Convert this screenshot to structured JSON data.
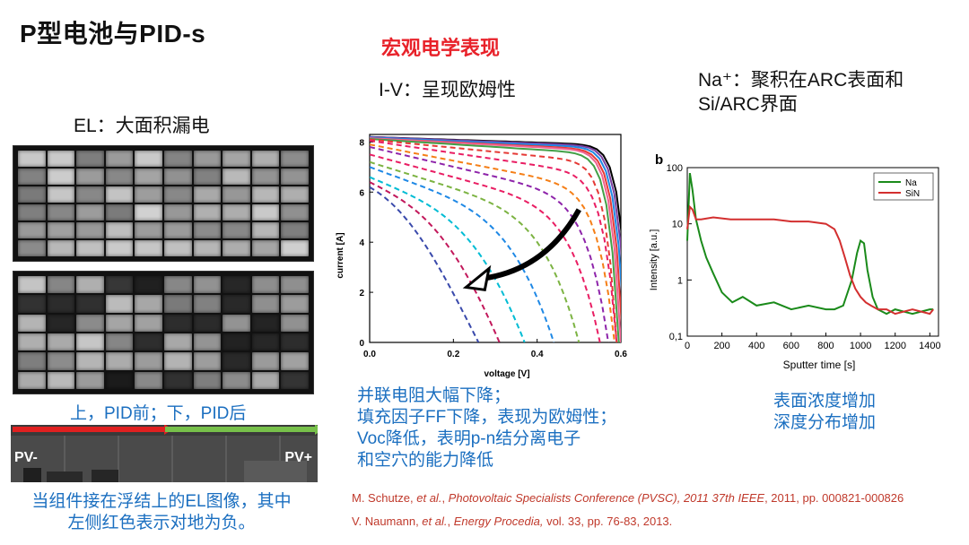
{
  "title": "P型电池与PID-s",
  "section_heading": "宏观电学表现",
  "iv_caption": "I-V：呈现欧姆性",
  "na_caption_line1": "Na⁺：聚积在ARC表面和",
  "na_caption_line2": "Si/ARC界面",
  "el_caption": "EL：大面积漏电",
  "el_compare_caption": "上，PID前；下，PID后",
  "pv_minus_label": "PV-",
  "pv_plus_label": "PV+",
  "float_desc_line1": "当组件接在浮结上的EL图像，其中",
  "float_desc_line2": "左侧红色表示对地为负。",
  "iv_desc_lines": [
    "并联电阻大幅下降；",
    "填充因子FF下降，表现为欧姆性；",
    "Voc降低，表明p-n结分离电子",
    "和空穴的能力降低"
  ],
  "sims_desc_line1": "表面浓度增加",
  "sims_desc_line2": "深度分布增加",
  "ref1": {
    "authors": "M. Schutze, ",
    "etal": "et al.",
    "sep": ", ",
    "venue": "Photovoltaic Specialists Conference (PVSC), 2011 37th IEEE",
    "rest": ", 2011, pp. 000821-000826"
  },
  "ref2": {
    "authors": "V. Naumann, ",
    "etal": "et al.",
    "sep": ", ",
    "venue": "Energy Procedia,",
    "rest": " vol. 33, pp. 76-83, 2013."
  },
  "colors": {
    "title_red": "#e8222a",
    "blue_text": "#1b6fc0",
    "ref_red": "#c0392b",
    "na_green": "#1a8a1a",
    "sin_red": "#d32f2f"
  },
  "chart_data": [
    {
      "type": "line",
      "xlabel": "voltage [V]",
      "ylabel": "current [A]",
      "xlim": [
        0,
        0.6
      ],
      "ylim": [
        0,
        8.3
      ],
      "xticks": [
        "0.0",
        "0.2",
        "0.4",
        "0.6"
      ],
      "yticks": [
        "0",
        "2",
        "4",
        "6",
        "8"
      ],
      "series": [
        {
          "style": "solid",
          "color": "#000000",
          "isc": 8.2,
          "voc": 0.62,
          "ff": 0.93
        },
        {
          "style": "solid",
          "color": "#7a3fa0",
          "isc": 8.2,
          "voc": 0.615,
          "ff": 0.92
        },
        {
          "style": "solid",
          "color": "#1e88e5",
          "isc": 8.18,
          "voc": 0.61,
          "ff": 0.91
        },
        {
          "style": "solid",
          "color": "#e53935",
          "isc": 8.15,
          "voc": 0.605,
          "ff": 0.9
        },
        {
          "style": "solid",
          "color": "#f06292",
          "isc": 8.15,
          "voc": 0.6,
          "ff": 0.89
        },
        {
          "style": "solid",
          "color": "#43a047",
          "isc": 8.12,
          "voc": 0.595,
          "ff": 0.87
        },
        {
          "style": "dashed",
          "color": "#e53935",
          "isc": 8.1,
          "voc": 0.59,
          "ff": 0.8
        },
        {
          "style": "dashed",
          "color": "#e91e63",
          "isc": 8.05,
          "voc": 0.59,
          "ff": 0.7
        },
        {
          "style": "dashed",
          "color": "#f57f17",
          "isc": 7.9,
          "voc": 0.585,
          "ff": 0.6
        },
        {
          "style": "dashed",
          "color": "#8e24aa",
          "isc": 7.8,
          "voc": 0.57,
          "ff": 0.52
        },
        {
          "style": "dashed",
          "color": "#e91e63",
          "isc": 7.5,
          "voc": 0.55,
          "ff": 0.45
        },
        {
          "style": "dashed",
          "color": "#7cb342",
          "isc": 7.2,
          "voc": 0.5,
          "ff": 0.4
        },
        {
          "style": "dashed",
          "color": "#1e88e5",
          "isc": 7.0,
          "voc": 0.44,
          "ff": 0.36
        },
        {
          "style": "dashed",
          "color": "#00bcd4",
          "isc": 6.6,
          "voc": 0.37,
          "ff": 0.33
        },
        {
          "style": "dashed",
          "color": "#c2185b",
          "isc": 6.4,
          "voc": 0.31,
          "ff": 0.31
        },
        {
          "style": "dashed",
          "color": "#3949ab",
          "isc": 6.2,
          "voc": 0.26,
          "ff": 0.29
        }
      ]
    },
    {
      "type": "line",
      "panel_label": "b",
      "xlabel": "Sputter time [s]",
      "ylabel": "Intensity [a.u.]",
      "xlim": [
        0,
        1450
      ],
      "ylog": true,
      "ylim": [
        0.1,
        100
      ],
      "xticks": [
        "0",
        "200",
        "400",
        "600",
        "800",
        "1000",
        "1200",
        "1400"
      ],
      "yticks": [
        "0,1",
        "1",
        "10",
        "100"
      ],
      "legend_position": "top-right",
      "series": [
        {
          "name": "Na",
          "color": "#1a8a1a",
          "x": [
            0,
            15,
            30,
            50,
            80,
            110,
            150,
            200,
            260,
            320,
            400,
            500,
            600,
            700,
            800,
            850,
            900,
            950,
            980,
            1000,
            1020,
            1040,
            1070,
            1100,
            1150,
            1200,
            1300,
            1400,
            1420
          ],
          "y": [
            5,
            80,
            40,
            12,
            5,
            2.5,
            1.3,
            0.6,
            0.4,
            0.5,
            0.35,
            0.4,
            0.3,
            0.35,
            0.3,
            0.3,
            0.35,
            1,
            3,
            5,
            4.5,
            1.5,
            0.5,
            0.3,
            0.25,
            0.3,
            0.25,
            0.3,
            0.3
          ]
        },
        {
          "name": "SiN",
          "color": "#d32f2f",
          "x": [
            0,
            15,
            30,
            50,
            80,
            150,
            250,
            400,
            500,
            600,
            700,
            800,
            850,
            880,
            910,
            940,
            970,
            1000,
            1030,
            1060,
            1100,
            1150,
            1200,
            1300,
            1400,
            1420
          ],
          "y": [
            8,
            20,
            18,
            12,
            12,
            13,
            12,
            12,
            12,
            11,
            11,
            10,
            8,
            5,
            2.5,
            1.2,
            0.7,
            0.5,
            0.4,
            0.35,
            0.3,
            0.3,
            0.25,
            0.3,
            0.25,
            0.3
          ]
        }
      ]
    }
  ]
}
